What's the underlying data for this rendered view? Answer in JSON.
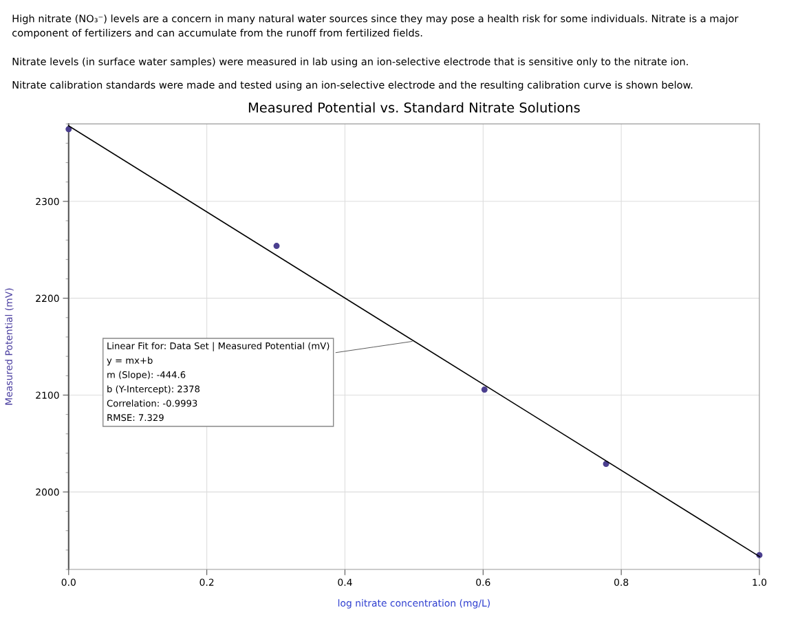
{
  "chart_data": {
    "type": "scatter",
    "title": "Measured Potential vs. Standard Nitrate Solutions",
    "xlabel": "log nitrate concentration (mg/L)",
    "ylabel": "Measured Potential (mV)",
    "annotations": [
      "High nitrate (NO₃⁻) levels are a concern in many natural water sources since they may pose a health risk for some individuals. Nitrate is a major component of fertilizers and can accumulate from the runoff from fertilized fields.",
      "Nitrate levels (in surface water samples) were measured in lab using an ion-selective electrode that is sensitive only to the nitrate ion.",
      "Nitrate calibration standards were made and tested using an ion-selective electrode and the resulting calibration curve is shown below.",
      {
        "text": "Linear Fit for: Data Set | Measured Potential (mV)\ny = mx+b\nm (Slope): -444.6\nb (Y-Intercept): 2378\nCorrelation: -0.9993\nRMSE: 7.329",
        "x": 0.5,
        "y": 2155.7
      }
    ],
    "series": [
      {
        "color": "#4b3f8f",
        "marker": "circle",
        "x": [
          0,
          0.301,
          0.602,
          0.778,
          1.0
        ],
        "values": [
          2374.5,
          2254,
          2105.7,
          2029,
          1934.8
        ]
      },
      {
        "type": "line",
        "color": "#000000",
        "x": [
          0,
          1
        ],
        "values": [
          2378,
          1933.4
        ]
      }
    ],
    "xlim": [
      0,
      1
    ],
    "ylim": [
      1920,
      2380
    ],
    "xticks": [
      {
        "value": 0,
        "label": "0.0"
      },
      {
        "value": 0.2,
        "label": "0.2"
      },
      {
        "value": 0.4,
        "label": "0.4"
      },
      {
        "value": 0.6,
        "label": "0.6"
      },
      {
        "value": 0.8,
        "label": "0.8"
      },
      {
        "value": 1.0,
        "label": "1.0"
      }
    ],
    "yticks": [
      2000,
      2100,
      2200,
      2300
    ],
    "grid": true
  }
}
